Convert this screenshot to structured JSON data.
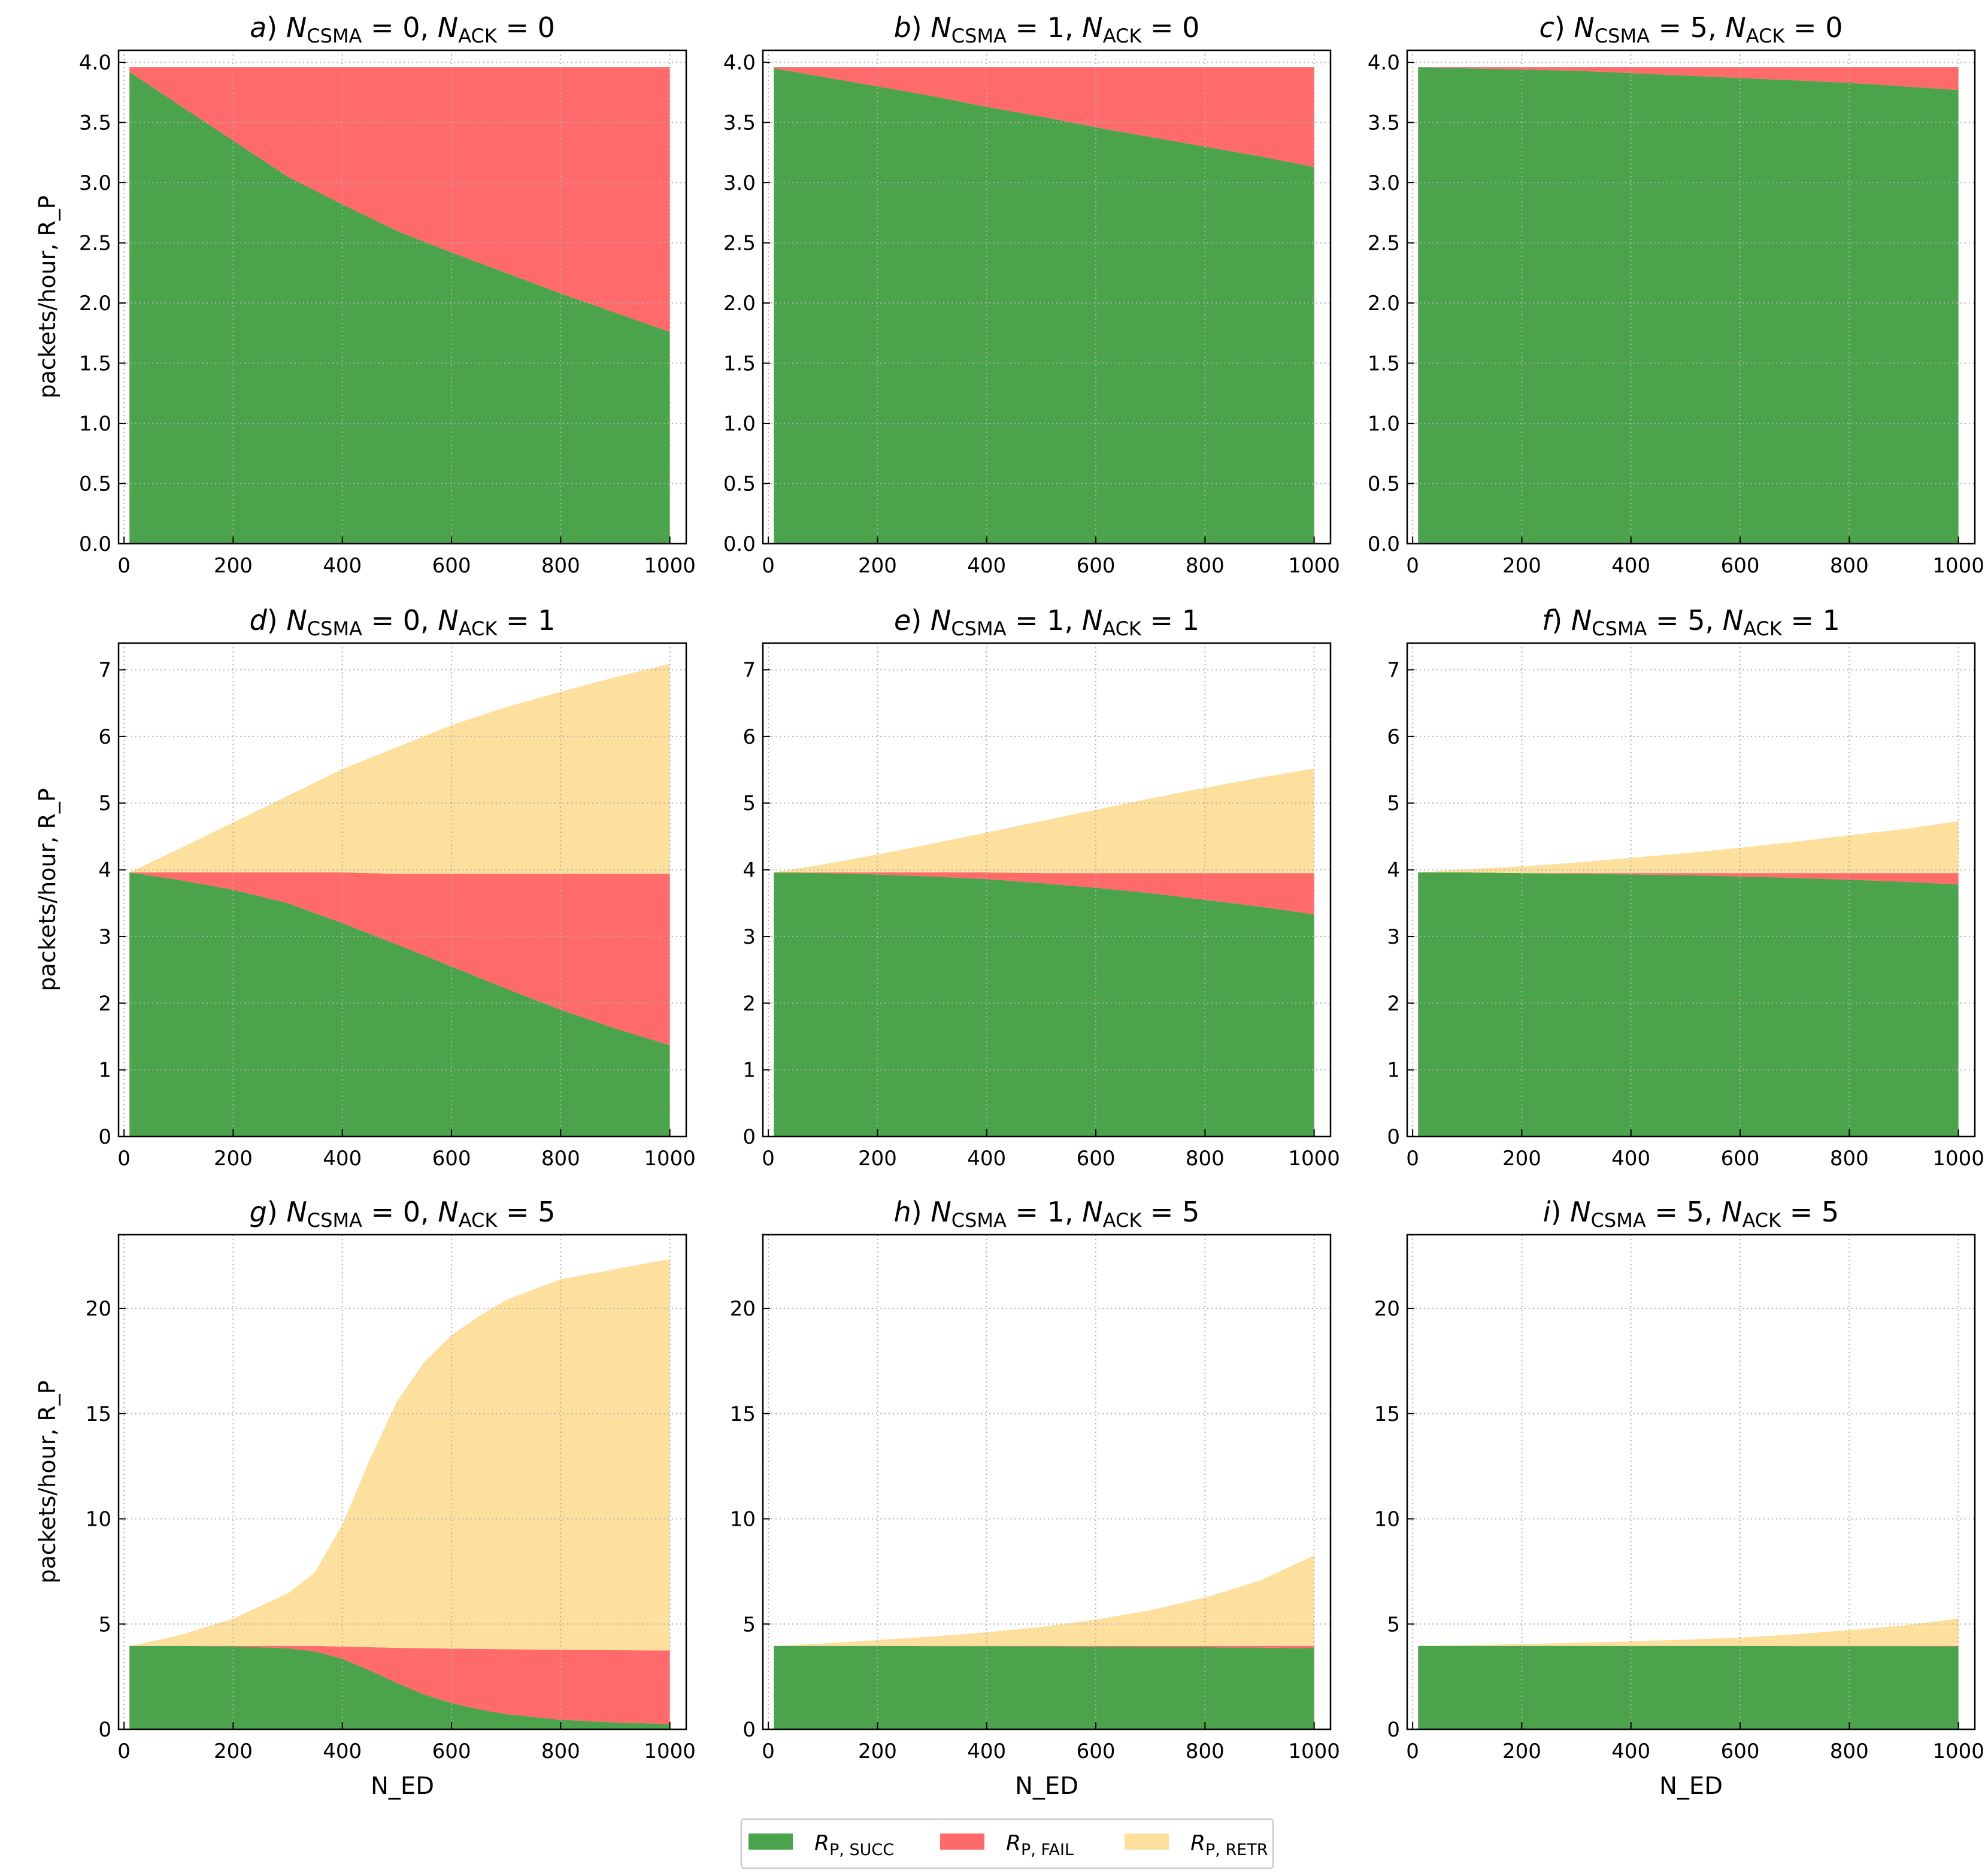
{
  "colors": {
    "succ": "#4ba34b",
    "fail": "#ff6b6b",
    "retr": "#fddf9e",
    "grid": "#b0b0b0"
  },
  "legend": [
    {
      "key": "succ",
      "symbol": "R",
      "sub": "P, SUCC"
    },
    {
      "key": "fail",
      "symbol": "R",
      "sub": "P, FAIL"
    },
    {
      "key": "retr",
      "symbol": "R",
      "sub": "P, RETR"
    }
  ],
  "chart_data": [
    {
      "type": "area",
      "stacked": true,
      "title": {
        "letter": "a",
        "csma": "0",
        "ack": "0"
      },
      "xlabel": "",
      "ylabel": "packets/hour, R_P",
      "xlim": [
        -10,
        1030
      ],
      "ylim": [
        0,
        4.1
      ],
      "xticks": [
        0,
        200,
        400,
        600,
        800,
        1000
      ],
      "yticks": [
        "0.0",
        "0.5",
        "1.0",
        "1.5",
        "2.0",
        "2.5",
        "3.0",
        "3.5",
        "4.0"
      ],
      "x": [
        10,
        100,
        200,
        300,
        400,
        500,
        600,
        700,
        800,
        900,
        1000
      ],
      "series": [
        {
          "name": "R_P,SUCC",
          "key": "succ",
          "values": [
            3.92,
            3.65,
            3.35,
            3.05,
            2.82,
            2.6,
            2.42,
            2.25,
            2.08,
            1.92,
            1.76
          ]
        },
        {
          "name": "R_P,FAIL",
          "key": "fail",
          "values": [
            0.04,
            0.31,
            0.61,
            0.91,
            1.14,
            1.36,
            1.54,
            1.71,
            1.88,
            2.04,
            2.2
          ]
        }
      ]
    },
    {
      "type": "area",
      "stacked": true,
      "title": {
        "letter": "b",
        "csma": "1",
        "ack": "0"
      },
      "xlabel": "",
      "ylabel": "",
      "xlim": [
        -10,
        1030
      ],
      "ylim": [
        0,
        4.1
      ],
      "xticks": [
        0,
        200,
        400,
        600,
        800,
        1000
      ],
      "yticks": [
        "0.0",
        "0.5",
        "1.0",
        "1.5",
        "2.0",
        "2.5",
        "3.0",
        "3.5",
        "4.0"
      ],
      "x": [
        10,
        100,
        200,
        300,
        400,
        500,
        600,
        700,
        800,
        900,
        1000
      ],
      "series": [
        {
          "name": "R_P,SUCC",
          "key": "succ",
          "values": [
            3.95,
            3.88,
            3.8,
            3.72,
            3.63,
            3.55,
            3.46,
            3.38,
            3.3,
            3.22,
            3.13
          ]
        },
        {
          "name": "R_P,FAIL",
          "key": "fail",
          "values": [
            0.01,
            0.08,
            0.16,
            0.24,
            0.33,
            0.41,
            0.5,
            0.58,
            0.66,
            0.74,
            0.83
          ]
        }
      ]
    },
    {
      "type": "area",
      "stacked": true,
      "title": {
        "letter": "c",
        "csma": "5",
        "ack": "0"
      },
      "xlabel": "",
      "ylabel": "",
      "xlim": [
        -10,
        1030
      ],
      "ylim": [
        0,
        4.1
      ],
      "xticks": [
        0,
        200,
        400,
        600,
        800,
        1000
      ],
      "yticks": [
        "0.0",
        "0.5",
        "1.0",
        "1.5",
        "2.0",
        "2.5",
        "3.0",
        "3.5",
        "4.0"
      ],
      "x": [
        10,
        100,
        200,
        300,
        400,
        500,
        600,
        700,
        800,
        900,
        1000
      ],
      "series": [
        {
          "name": "R_P,SUCC",
          "key": "succ",
          "values": [
            3.96,
            3.95,
            3.94,
            3.93,
            3.91,
            3.89,
            3.87,
            3.85,
            3.83,
            3.8,
            3.77
          ]
        },
        {
          "name": "R_P,FAIL",
          "key": "fail",
          "values": [
            0.0,
            0.01,
            0.02,
            0.03,
            0.05,
            0.07,
            0.09,
            0.11,
            0.13,
            0.16,
            0.19
          ]
        }
      ]
    },
    {
      "type": "area",
      "stacked": true,
      "title": {
        "letter": "d",
        "csma": "0",
        "ack": "1"
      },
      "xlabel": "",
      "ylabel": "packets/hour, R_P",
      "xlim": [
        -10,
        1030
      ],
      "ylim": [
        0,
        7.4
      ],
      "xticks": [
        0,
        200,
        400,
        600,
        800,
        1000
      ],
      "yticks": [
        "0",
        "1",
        "2",
        "3",
        "4",
        "5",
        "6",
        "7"
      ],
      "x": [
        10,
        100,
        200,
        300,
        400,
        500,
        600,
        700,
        800,
        900,
        1000
      ],
      "series": [
        {
          "name": "R_P,SUCC",
          "key": "succ",
          "values": [
            3.96,
            3.85,
            3.7,
            3.5,
            3.2,
            2.88,
            2.55,
            2.22,
            1.9,
            1.62,
            1.37
          ]
        },
        {
          "name": "R_P,FAIL",
          "key": "fail",
          "values": [
            0.0,
            0.11,
            0.26,
            0.46,
            0.76,
            1.06,
            1.39,
            1.72,
            2.04,
            2.32,
            2.57
          ]
        },
        {
          "name": "R_P,RETR",
          "key": "retr",
          "values": [
            0.0,
            0.35,
            0.75,
            1.15,
            1.55,
            1.9,
            2.23,
            2.5,
            2.73,
            2.95,
            3.15
          ]
        }
      ]
    },
    {
      "type": "area",
      "stacked": true,
      "title": {
        "letter": "e",
        "csma": "1",
        "ack": "1"
      },
      "xlabel": "",
      "ylabel": "",
      "xlim": [
        -10,
        1030
      ],
      "ylim": [
        0,
        7.4
      ],
      "xticks": [
        0,
        200,
        400,
        600,
        800,
        1000
      ],
      "yticks": [
        "0",
        "1",
        "2",
        "3",
        "4",
        "5",
        "6",
        "7"
      ],
      "x": [
        10,
        100,
        200,
        300,
        400,
        500,
        600,
        700,
        800,
        900,
        1000
      ],
      "series": [
        {
          "name": "R_P,SUCC",
          "key": "succ",
          "values": [
            3.96,
            3.95,
            3.93,
            3.9,
            3.86,
            3.8,
            3.73,
            3.65,
            3.55,
            3.45,
            3.33
          ]
        },
        {
          "name": "R_P,FAIL",
          "key": "fail",
          "values": [
            0.0,
            0.01,
            0.03,
            0.06,
            0.1,
            0.15,
            0.22,
            0.3,
            0.4,
            0.5,
            0.62
          ]
        },
        {
          "name": "R_P,RETR",
          "key": "retr",
          "values": [
            0.0,
            0.12,
            0.27,
            0.43,
            0.6,
            0.78,
            0.95,
            1.12,
            1.28,
            1.43,
            1.57
          ]
        }
      ]
    },
    {
      "type": "area",
      "stacked": true,
      "title": {
        "letter": "f",
        "csma": "5",
        "ack": "1"
      },
      "xlabel": "",
      "ylabel": "",
      "xlim": [
        -10,
        1030
      ],
      "ylim": [
        0,
        7.4
      ],
      "xticks": [
        0,
        200,
        400,
        600,
        800,
        1000
      ],
      "yticks": [
        "0",
        "1",
        "2",
        "3",
        "4",
        "5",
        "6",
        "7"
      ],
      "x": [
        10,
        100,
        200,
        300,
        400,
        500,
        600,
        700,
        800,
        900,
        1000
      ],
      "series": [
        {
          "name": "R_P,SUCC",
          "key": "succ",
          "values": [
            3.96,
            3.96,
            3.95,
            3.94,
            3.93,
            3.92,
            3.9,
            3.88,
            3.85,
            3.82,
            3.78
          ]
        },
        {
          "name": "R_P,FAIL",
          "key": "fail",
          "values": [
            0.0,
            0.0,
            0.0,
            0.01,
            0.02,
            0.03,
            0.05,
            0.07,
            0.1,
            0.13,
            0.17
          ]
        },
        {
          "name": "R_P,RETR",
          "key": "retr",
          "values": [
            0.0,
            0.05,
            0.1,
            0.16,
            0.23,
            0.3,
            0.38,
            0.47,
            0.57,
            0.66,
            0.78
          ]
        }
      ]
    },
    {
      "type": "area",
      "stacked": true,
      "title": {
        "letter": "g",
        "csma": "0",
        "ack": "5"
      },
      "xlabel": "N_ED",
      "ylabel": "packets/hour, R_P",
      "xlim": [
        -10,
        1030
      ],
      "ylim": [
        0,
        23.5
      ],
      "xticks": [
        0,
        200,
        400,
        600,
        800,
        1000
      ],
      "yticks": [
        "0",
        "5",
        "10",
        "15",
        "20"
      ],
      "x": [
        10,
        100,
        200,
        300,
        350,
        400,
        450,
        500,
        550,
        600,
        650,
        700,
        800,
        900,
        1000
      ],
      "series": [
        {
          "name": "R_P,SUCC",
          "key": "succ",
          "values": [
            3.96,
            3.96,
            3.94,
            3.85,
            3.7,
            3.35,
            2.8,
            2.2,
            1.65,
            1.25,
            0.95,
            0.72,
            0.45,
            0.32,
            0.25
          ]
        },
        {
          "name": "R_P,FAIL",
          "key": "fail",
          "values": [
            0.0,
            0.0,
            0.02,
            0.11,
            0.26,
            0.58,
            1.1,
            1.67,
            2.2,
            2.58,
            2.87,
            3.08,
            3.33,
            3.44,
            3.49
          ]
        },
        {
          "name": "R_P,RETR",
          "key": "retr",
          "values": [
            0.0,
            0.5,
            1.3,
            2.5,
            3.5,
            5.8,
            8.9,
            11.7,
            13.6,
            14.9,
            15.8,
            16.6,
            17.6,
            18.1,
            18.6
          ]
        }
      ]
    },
    {
      "type": "area",
      "stacked": true,
      "title": {
        "letter": "h",
        "csma": "1",
        "ack": "5"
      },
      "xlabel": "N_ED",
      "ylabel": "",
      "xlim": [
        -10,
        1030
      ],
      "ylim": [
        0,
        23.5
      ],
      "xticks": [
        0,
        200,
        400,
        600,
        800,
        1000
      ],
      "yticks": [
        "0",
        "5",
        "10",
        "15",
        "20"
      ],
      "x": [
        10,
        100,
        200,
        300,
        400,
        500,
        600,
        700,
        800,
        900,
        1000
      ],
      "series": [
        {
          "name": "R_P,SUCC",
          "key": "succ",
          "values": [
            3.96,
            3.96,
            3.96,
            3.95,
            3.95,
            3.94,
            3.93,
            3.92,
            3.9,
            3.88,
            3.85
          ]
        },
        {
          "name": "R_P,FAIL",
          "key": "fail",
          "values": [
            0.0,
            0.0,
            0.0,
            0.01,
            0.01,
            0.02,
            0.03,
            0.04,
            0.06,
            0.08,
            0.11
          ]
        },
        {
          "name": "R_P,RETR",
          "key": "retr",
          "values": [
            0.0,
            0.12,
            0.28,
            0.45,
            0.65,
            0.9,
            1.25,
            1.7,
            2.3,
            3.1,
            4.3
          ]
        }
      ]
    },
    {
      "type": "area",
      "stacked": true,
      "title": {
        "letter": "i",
        "csma": "5",
        "ack": "5"
      },
      "xlabel": "N_ED",
      "ylabel": "",
      "xlim": [
        -10,
        1030
      ],
      "ylim": [
        0,
        23.5
      ],
      "xticks": [
        0,
        200,
        400,
        600,
        800,
        1000
      ],
      "yticks": [
        "0",
        "5",
        "10",
        "15",
        "20"
      ],
      "x": [
        10,
        100,
        200,
        300,
        400,
        500,
        600,
        700,
        800,
        900,
        1000
      ],
      "series": [
        {
          "name": "R_P,SUCC",
          "key": "succ",
          "values": [
            3.96,
            3.96,
            3.96,
            3.96,
            3.96,
            3.96,
            3.96,
            3.95,
            3.95,
            3.95,
            3.94
          ]
        },
        {
          "name": "R_P,FAIL",
          "key": "fail",
          "values": [
            0.0,
            0.0,
            0.0,
            0.0,
            0.0,
            0.0,
            0.0,
            0.01,
            0.01,
            0.01,
            0.02
          ]
        },
        {
          "name": "R_P,RETR",
          "key": "retr",
          "values": [
            0.0,
            0.04,
            0.09,
            0.15,
            0.22,
            0.3,
            0.4,
            0.55,
            0.75,
            0.98,
            1.3
          ]
        }
      ]
    }
  ]
}
